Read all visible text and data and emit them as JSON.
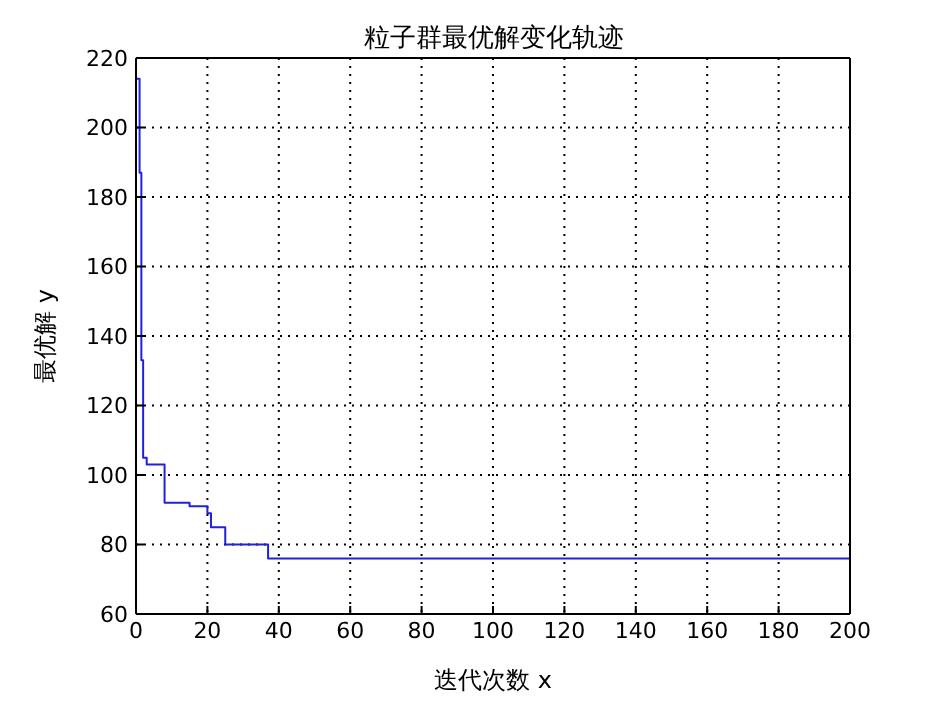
{
  "chart_data": {
    "type": "step",
    "title": "粒子群最优解变化轨迹",
    "xlabel": "迭代次数 x",
    "ylabel": "最优解 y",
    "x": [
      0,
      1,
      1.5,
      2,
      3,
      8,
      15,
      20,
      21,
      25,
      37,
      200
    ],
    "series": [
      {
        "color": "#2020e0",
        "values": [
          214,
          187,
          133,
          105,
          103,
          92,
          91,
          89,
          85,
          80,
          76,
          76
        ]
      }
    ],
    "xlim": [
      0,
      200
    ],
    "xticks": [
      0,
      20,
      40,
      60,
      80,
      100,
      120,
      140,
      160,
      180,
      200
    ],
    "ylim": [
      60,
      220
    ],
    "yticks": [
      60,
      80,
      100,
      120,
      140,
      160,
      180,
      200,
      220
    ],
    "grid": true,
    "marker": "none",
    "line_style": "solid"
  }
}
